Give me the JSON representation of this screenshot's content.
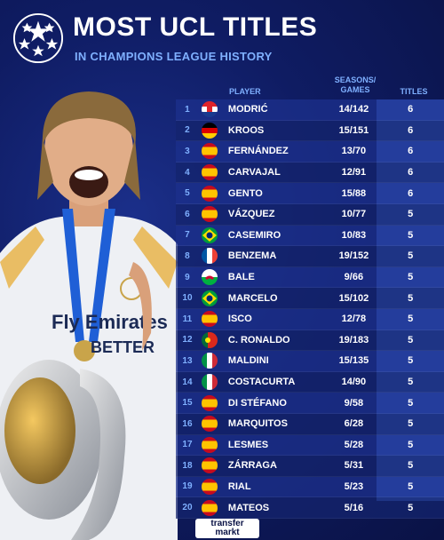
{
  "header": {
    "title": "MOST UCL TITLES",
    "subtitle": "IN CHAMPIONS LEAGUE HISTORY",
    "logo_icon": "starball-icon"
  },
  "table": {
    "columns": {
      "player": "PLAYER",
      "seasons_games": "SEASONS/ GAMES",
      "titles": "TITLES"
    },
    "rows": [
      {
        "rank": "1",
        "flag": "croatia-flag-icon",
        "name": "MODRIĆ",
        "seasons_games": "14/142",
        "titles": "6"
      },
      {
        "rank": "2",
        "flag": "germany-flag-icon",
        "name": "KROOS",
        "seasons_games": "15/151",
        "titles": "6"
      },
      {
        "rank": "3",
        "flag": "spain-flag-icon",
        "name": "FERNÁNDEZ",
        "seasons_games": "13/70",
        "titles": "6"
      },
      {
        "rank": "4",
        "flag": "spain-flag-icon",
        "name": "CARVAJAL",
        "seasons_games": "12/91",
        "titles": "6"
      },
      {
        "rank": "5",
        "flag": "spain-flag-icon",
        "name": "GENTO",
        "seasons_games": "15/88",
        "titles": "6"
      },
      {
        "rank": "6",
        "flag": "spain-flag-icon",
        "name": "VÁZQUEZ",
        "seasons_games": "10/77",
        "titles": "5"
      },
      {
        "rank": "7",
        "flag": "brazil-flag-icon",
        "name": "CASEMIRO",
        "seasons_games": "10/83",
        "titles": "5"
      },
      {
        "rank": "8",
        "flag": "france-flag-icon",
        "name": "BENZEMA",
        "seasons_games": "19/152",
        "titles": "5"
      },
      {
        "rank": "9",
        "flag": "wales-flag-icon",
        "name": "BALE",
        "seasons_games": "9/66",
        "titles": "5"
      },
      {
        "rank": "10",
        "flag": "brazil-flag-icon",
        "name": "MARCELO",
        "seasons_games": "15/102",
        "titles": "5"
      },
      {
        "rank": "11",
        "flag": "spain-flag-icon",
        "name": "ISCO",
        "seasons_games": "12/78",
        "titles": "5"
      },
      {
        "rank": "12",
        "flag": "portugal-flag-icon",
        "name": "C. RONALDO",
        "seasons_games": "19/183",
        "titles": "5"
      },
      {
        "rank": "13",
        "flag": "italy-flag-icon",
        "name": "MALDINI",
        "seasons_games": "15/135",
        "titles": "5"
      },
      {
        "rank": "14",
        "flag": "italy-flag-icon",
        "name": "COSTACURTA",
        "seasons_games": "14/90",
        "titles": "5"
      },
      {
        "rank": "15",
        "flag": "spain-flag-icon",
        "name": "DI STÉFANO",
        "seasons_games": "9/58",
        "titles": "5"
      },
      {
        "rank": "16",
        "flag": "spain-flag-icon",
        "name": "MARQUITOS",
        "seasons_games": "6/28",
        "titles": "5"
      },
      {
        "rank": "17",
        "flag": "spain-flag-icon",
        "name": "LESMES",
        "seasons_games": "5/28",
        "titles": "5"
      },
      {
        "rank": "18",
        "flag": "spain-flag-icon",
        "name": "ZÁRRAGA",
        "seasons_games": "5/31",
        "titles": "5"
      },
      {
        "rank": "19",
        "flag": "spain-flag-icon",
        "name": "RIAL",
        "seasons_games": "5/23",
        "titles": "5"
      },
      {
        "rank": "20",
        "flag": "spain-flag-icon",
        "name": "MATEOS",
        "seasons_games": "5/16",
        "titles": "5"
      }
    ]
  },
  "photo": {
    "shirt_line1": "Fly Emirates",
    "shirt_line2": "BETTER"
  },
  "footer": {
    "brand_line1": "transfer",
    "brand_line2": "markt"
  }
}
